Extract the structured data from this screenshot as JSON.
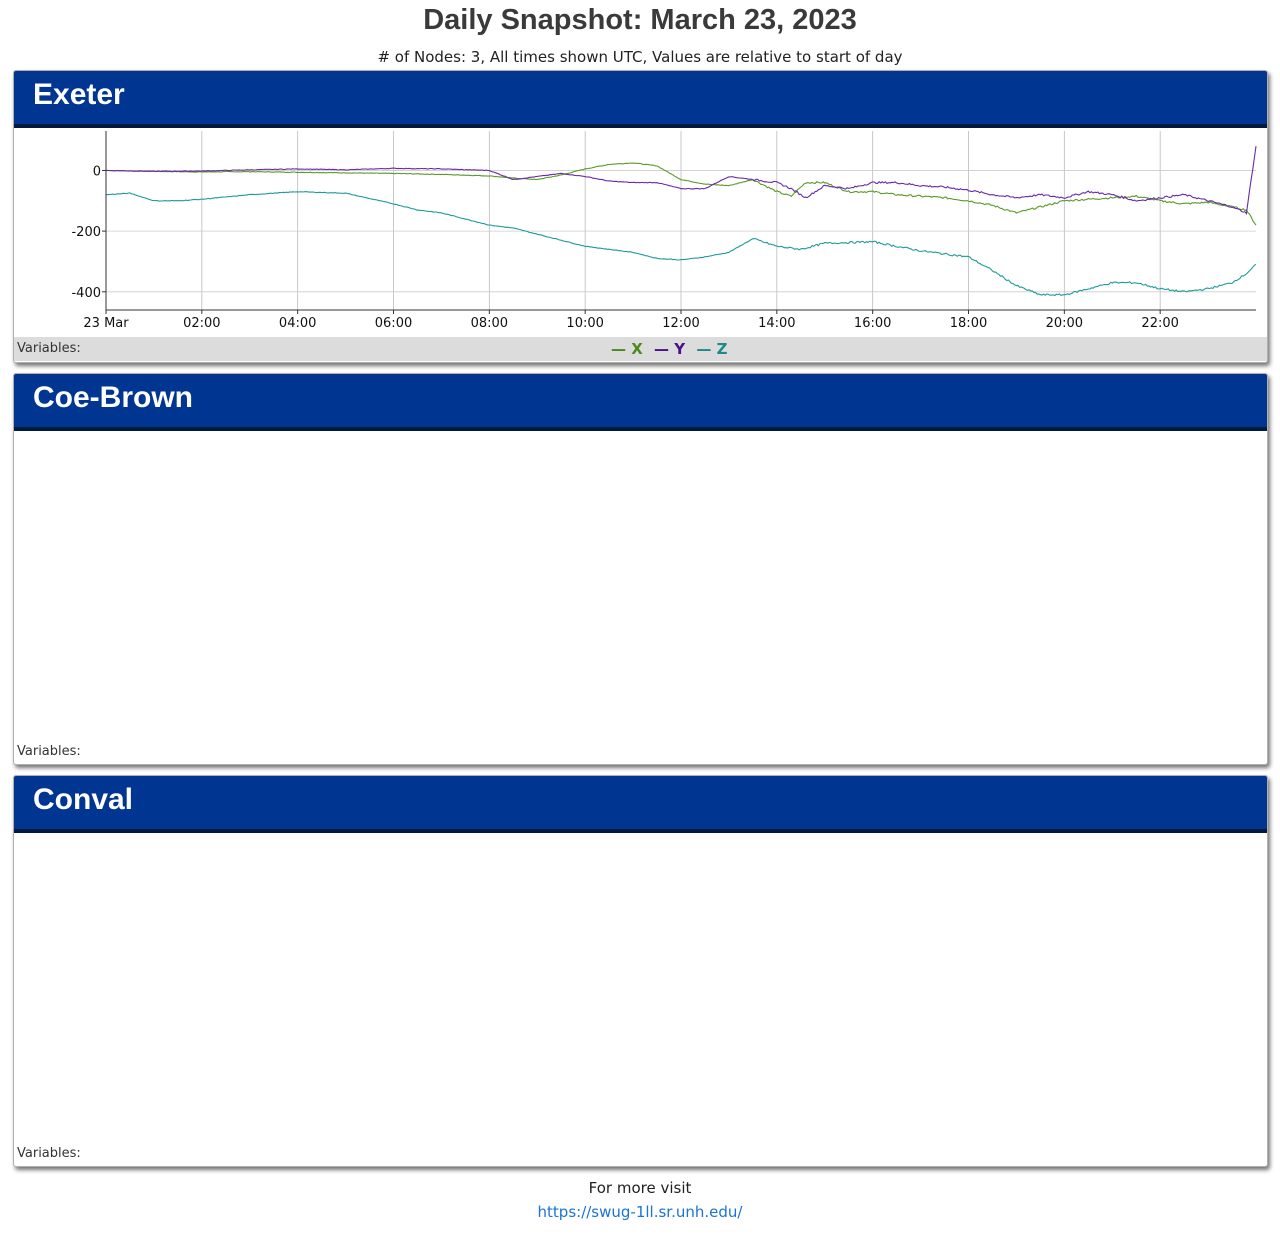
{
  "header": {
    "title": "Daily Snapshot: March 23, 2023",
    "subtitle": "# of Nodes: 3, All times shown UTC, Values are relative to start of day"
  },
  "panels": [
    {
      "name": "Exeter",
      "variables_label": "Variables:",
      "has_chart": true
    },
    {
      "name": "Coe-Brown",
      "variables_label": "Variables:",
      "has_chart": false
    },
    {
      "name": "Conval",
      "variables_label": "Variables:",
      "has_chart": false
    }
  ],
  "legend": [
    {
      "label": "X",
      "color": "#4a8a1c"
    },
    {
      "label": "Y",
      "color": "#4b0f8a"
    },
    {
      "label": "Z",
      "color": "#1a8a8a"
    }
  ],
  "chart_data": {
    "type": "line",
    "x_tick_labels": [
      "23 Mar",
      "02:00",
      "04:00",
      "06:00",
      "08:00",
      "10:00",
      "12:00",
      "14:00",
      "16:00",
      "18:00",
      "20:00",
      "22:00"
    ],
    "y_tick_labels": [
      "0",
      "-200",
      "-400"
    ],
    "y_ticks": [
      0,
      -200,
      -400
    ],
    "ylim": [
      -460,
      130
    ],
    "xlim_hours": [
      0,
      24
    ],
    "grid": true,
    "legend_position": "bottom-center",
    "series": [
      {
        "name": "X",
        "color": "#5a9a28",
        "x": [
          0,
          1,
          2,
          3,
          4,
          5,
          6,
          7,
          8,
          8.5,
          9,
          9.5,
          10,
          10.5,
          11,
          11.5,
          12,
          12.5,
          13,
          13.5,
          14,
          14.3,
          14.6,
          15,
          15.5,
          16,
          16.5,
          17,
          17.5,
          18,
          18.5,
          19,
          19.5,
          20,
          20.5,
          21,
          21.5,
          22,
          22.5,
          23,
          23.5,
          23.8,
          24
        ],
        "y": [
          0,
          -3,
          -5,
          -4,
          -6,
          -8,
          -10,
          -13,
          -18,
          -25,
          -30,
          -15,
          5,
          20,
          25,
          15,
          -30,
          -45,
          -50,
          -30,
          -70,
          -85,
          -40,
          -40,
          -70,
          -70,
          -80,
          -85,
          -90,
          -100,
          -115,
          -140,
          -120,
          -100,
          -95,
          -90,
          -85,
          -100,
          -110,
          -105,
          -120,
          -130,
          -180
        ]
      },
      {
        "name": "Y",
        "color": "#6a2aa8",
        "x": [
          0,
          1,
          2,
          3,
          4,
          5,
          6,
          7,
          8,
          8.5,
          9,
          9.5,
          10,
          10.5,
          11,
          11.5,
          12,
          12.5,
          13,
          13.5,
          14,
          14.3,
          14.6,
          15,
          15.5,
          16,
          16.5,
          17,
          17.5,
          18,
          18.5,
          19,
          19.5,
          20,
          20.5,
          21,
          21.5,
          22,
          22.5,
          23,
          23.5,
          23.8,
          24
        ],
        "y": [
          0,
          -3,
          -2,
          2,
          5,
          2,
          7,
          5,
          0,
          -30,
          -20,
          -10,
          -20,
          -35,
          -40,
          -40,
          -60,
          -60,
          -20,
          -30,
          -40,
          -60,
          -90,
          -50,
          -60,
          -40,
          -40,
          -50,
          -55,
          -65,
          -80,
          -90,
          -80,
          -90,
          -70,
          -80,
          -100,
          -90,
          -80,
          -100,
          -120,
          -140,
          80
        ]
      },
      {
        "name": "Z",
        "color": "#1f9a9a",
        "x": [
          0,
          0.5,
          1,
          1.5,
          2,
          3,
          4,
          5,
          6,
          6.5,
          7,
          8,
          8.5,
          9,
          10,
          11,
          11.5,
          12,
          12.5,
          13,
          13.5,
          14,
          14.5,
          15,
          16,
          17,
          18,
          18.5,
          19,
          19.5,
          20,
          20.5,
          21,
          21.5,
          22,
          22.5,
          23,
          23.5,
          23.8,
          24
        ],
        "y": [
          -80,
          -75,
          -100,
          -100,
          -95,
          -80,
          -70,
          -75,
          -110,
          -130,
          -140,
          -180,
          -190,
          -210,
          -250,
          -270,
          -290,
          -295,
          -285,
          -270,
          -225,
          -250,
          -260,
          -240,
          -235,
          -265,
          -285,
          -330,
          -380,
          -410,
          -410,
          -390,
          -370,
          -370,
          -390,
          -400,
          -390,
          -370,
          -340,
          -310
        ]
      }
    ]
  },
  "footer": {
    "text": "For more visit",
    "link": "https://swug-1ll.sr.unh.edu/"
  }
}
